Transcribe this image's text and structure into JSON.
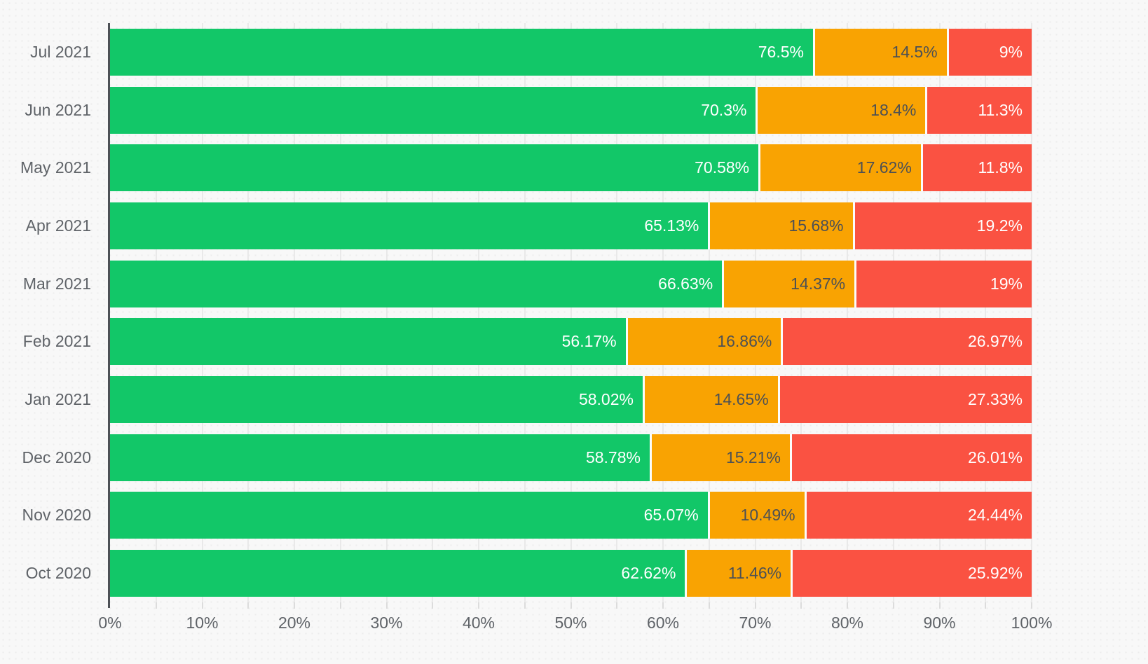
{
  "chart_data": {
    "type": "bar",
    "orientation": "horizontal",
    "stacked": true,
    "title": "",
    "xlabel": "",
    "ylabel": "",
    "xlim": [
      0,
      100
    ],
    "grid": true,
    "gridline_step_pct": 5,
    "xtick_label_step_pct": 10,
    "xtick_labels": [
      "0%",
      "10%",
      "20%",
      "30%",
      "40%",
      "50%",
      "60%",
      "70%",
      "80%",
      "90%",
      "100%"
    ],
    "categories": [
      "Jul 2021",
      "Jun 2021",
      "May 2021",
      "Apr 2021",
      "Mar 2021",
      "Feb 2021",
      "Jan 2021",
      "Dec 2020",
      "Nov 2020",
      "Oct 2020"
    ],
    "series": [
      {
        "name": "green-segment",
        "color": "#12c768",
        "label_color": "#ffffff",
        "values": [
          76.5,
          70.3,
          70.58,
          65.13,
          66.63,
          56.17,
          58.02,
          58.78,
          65.07,
          62.62
        ],
        "labels": [
          "76.5%",
          "70.3%",
          "70.58%",
          "65.13%",
          "66.63%",
          "56.17%",
          "58.02%",
          "58.78%",
          "65.07%",
          "62.62%"
        ]
      },
      {
        "name": "orange-segment",
        "color": "#f9a302",
        "label_color": "#4c5055",
        "values": [
          14.5,
          18.4,
          17.62,
          15.68,
          14.37,
          16.86,
          14.65,
          15.21,
          10.49,
          11.46
        ],
        "labels": [
          "14.5%",
          "18.4%",
          "17.62%",
          "15.68%",
          "14.37%",
          "16.86%",
          "14.65%",
          "15.21%",
          "10.49%",
          "11.46%"
        ]
      },
      {
        "name": "red-segment",
        "color": "#fa5242",
        "label_color": "#ffffff",
        "values": [
          9,
          11.3,
          11.8,
          19.2,
          19,
          26.97,
          27.33,
          26.01,
          24.44,
          25.92
        ],
        "labels": [
          "9%",
          "11.3%",
          "11.8%",
          "19.2%",
          "19%",
          "26.97%",
          "27.33%",
          "26.01%",
          "24.44%",
          "25.92%"
        ]
      }
    ],
    "colors": {
      "background": "#f8f8f8",
      "gridline": "#e9e9e9",
      "axis_line": "#4d5156",
      "axis_label": "#5f6368",
      "segment_separator": "#fcfcfc"
    }
  }
}
